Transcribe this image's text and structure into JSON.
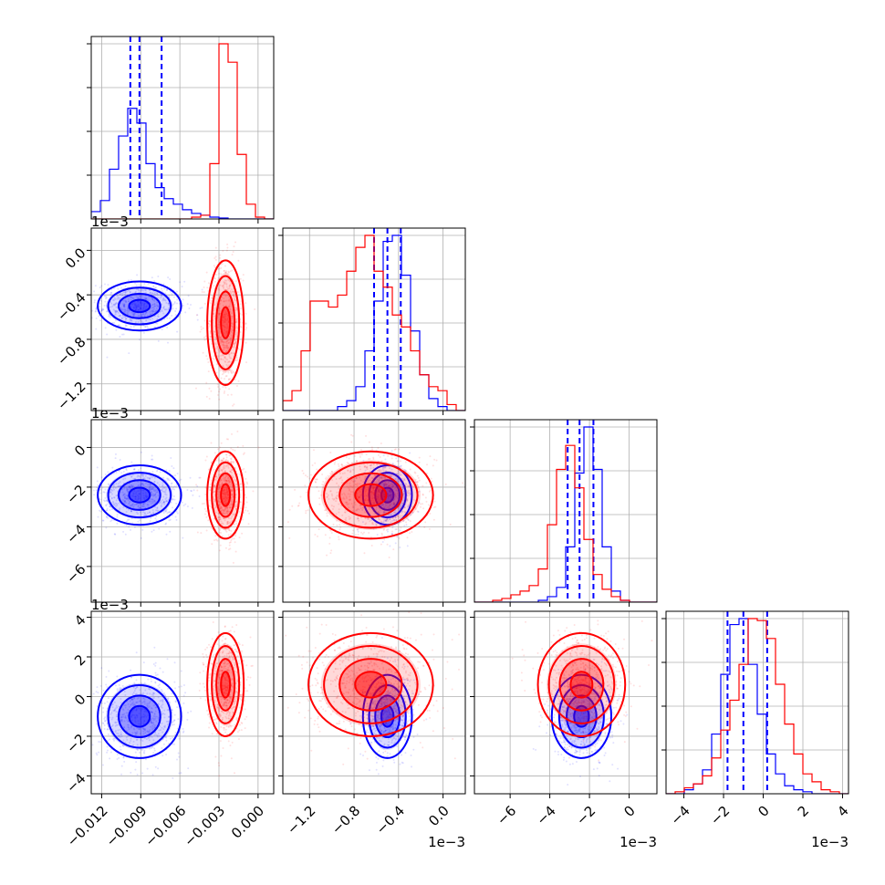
{
  "chart_data": {
    "type": "corner",
    "parameters": [
      {
        "range": [
          -0.0128,
          0.0012
        ],
        "ticks": [
          -0.012,
          -0.009,
          -0.006,
          -0.003,
          0.0
        ],
        "tick_labels": [
          "−0.012",
          "−0.009",
          "−0.006",
          "−0.003",
          "0.000"
        ],
        "offset_text": ""
      },
      {
        "range": [
          -1.44,
          0.2
        ],
        "ticks": [
          -1.2,
          -0.8,
          -0.4,
          0.0
        ],
        "tick_labels": [
          "−1.2",
          "−0.8",
          "−0.4",
          "0.0"
        ],
        "offset_text": "1e−3"
      },
      {
        "range": [
          -7.8,
          1.4
        ],
        "ticks": [
          -6,
          -4,
          -2,
          0
        ],
        "tick_labels": [
          "−6",
          "−4",
          "−2",
          "0"
        ],
        "offset_text": "1e−3"
      },
      {
        "range": [
          -4.9,
          4.3
        ],
        "ticks": [
          -4,
          -2,
          0,
          2,
          4
        ],
        "tick_labels": [
          "−4",
          "−2",
          "0",
          "2",
          "4"
        ],
        "offset_text": "1e−3"
      }
    ],
    "series": [
      {
        "color": "#0000ff",
        "mean": [
          -0.0091,
          -0.5,
          -2.4,
          -1.0
        ],
        "std": [
          0.0016,
          0.11,
          0.75,
          1.05
        ],
        "corr": [
          [
            1,
            0.0,
            0.0,
            0.0
          ],
          [
            0.0,
            1,
            0.0,
            0.0
          ],
          [
            0.0,
            0.0,
            1,
            0.0
          ],
          [
            0.0,
            0.0,
            0.0,
            1
          ]
        ],
        "quantiles": [
          [
            -0.0098,
            -0.0091,
            -0.0074
          ],
          [
            -0.62,
            -0.5,
            -0.38
          ],
          [
            -3.1,
            -2.5,
            -1.8
          ],
          [
            -1.8,
            -1.0,
            0.2
          ]
        ],
        "hist": [
          {
            "edges": [
              -0.0128,
              0.0012
            ],
            "counts": [
              0.04,
              0.1,
              0.27,
              0.45,
              0.6,
              0.52,
              0.3,
              0.17,
              0.11,
              0.08,
              0.05,
              0.03,
              0.02,
              0.01,
              0.005,
              0,
              0,
              0,
              0,
              0
            ]
          },
          {
            "edges": [
              -1.44,
              0.2
            ],
            "counts": [
              0,
              0,
              0,
              0,
              0,
              0,
              0.02,
              0.05,
              0.12,
              0.3,
              0.55,
              0.85,
              0.88,
              0.68,
              0.4,
              0.18,
              0.06,
              0.02,
              0,
              0
            ]
          },
          {
            "edges": [
              -7.8,
              1.4
            ],
            "counts": [
              0,
              0,
              0,
              0,
              0,
              0,
              0,
              0.01,
              0.03,
              0.08,
              0.3,
              0.7,
              0.95,
              0.72,
              0.3,
              0.06,
              0.01,
              0,
              0,
              0
            ]
          },
          {
            "edges": [
              -4.9,
              4.3
            ],
            "counts": [
              0,
              0,
              0.02,
              0.05,
              0.12,
              0.3,
              0.6,
              0.85,
              0.88,
              0.65,
              0.4,
              0.2,
              0.1,
              0.04,
              0.02,
              0.01,
              0,
              0,
              0,
              0
            ]
          }
        ]
      },
      {
        "color": "#ff0000",
        "mean": [
          -0.0025,
          -0.65,
          -2.4,
          0.6
        ],
        "std": [
          0.0007,
          0.28,
          1.1,
          1.3
        ],
        "corr": [
          [
            1,
            0.0,
            0.0,
            0.0
          ],
          [
            0.0,
            1,
            0.0,
            0.0
          ],
          [
            0.0,
            0.0,
            1,
            0.0
          ],
          [
            0.0,
            0.0,
            0.0,
            1
          ]
        ],
        "quantiles": [],
        "hist": [
          {
            "edges": [
              -0.0128,
              0.0012
            ],
            "counts": [
              0,
              0,
              0,
              0,
              0,
              0,
              0,
              0,
              0,
              0,
              0,
              0.01,
              0.02,
              0.3,
              0.95,
              0.85,
              0.35,
              0.08,
              0.01,
              0
            ]
          },
          {
            "edges": [
              -1.44,
              0.2
            ],
            "counts": [
              0.05,
              0.1,
              0.3,
              0.55,
              0.55,
              0.52,
              0.58,
              0.7,
              0.82,
              0.88,
              0.7,
              0.62,
              0.48,
              0.42,
              0.3,
              0.18,
              0.12,
              0.1,
              0.03,
              0
            ]
          },
          {
            "edges": [
              -7.8,
              1.4
            ],
            "counts": [
              0,
              0,
              0.01,
              0.02,
              0.04,
              0.06,
              0.09,
              0.18,
              0.42,
              0.72,
              0.85,
              0.62,
              0.34,
              0.15,
              0.07,
              0.03,
              0.01,
              0,
              0,
              0
            ]
          },
          {
            "edges": [
              -4.9,
              4.3
            ],
            "counts": [
              0,
              0.01,
              0.03,
              0.05,
              0.09,
              0.18,
              0.32,
              0.47,
              0.65,
              0.88,
              0.87,
              0.78,
              0.55,
              0.35,
              0.2,
              0.1,
              0.06,
              0.02,
              0.01,
              0
            ]
          }
        ]
      }
    ],
    "contour_levels_sigma": [
      0.5,
      1.0,
      1.5,
      2.0
    ],
    "grid": true,
    "title": "",
    "xlabel": "",
    "ylabel": ""
  }
}
